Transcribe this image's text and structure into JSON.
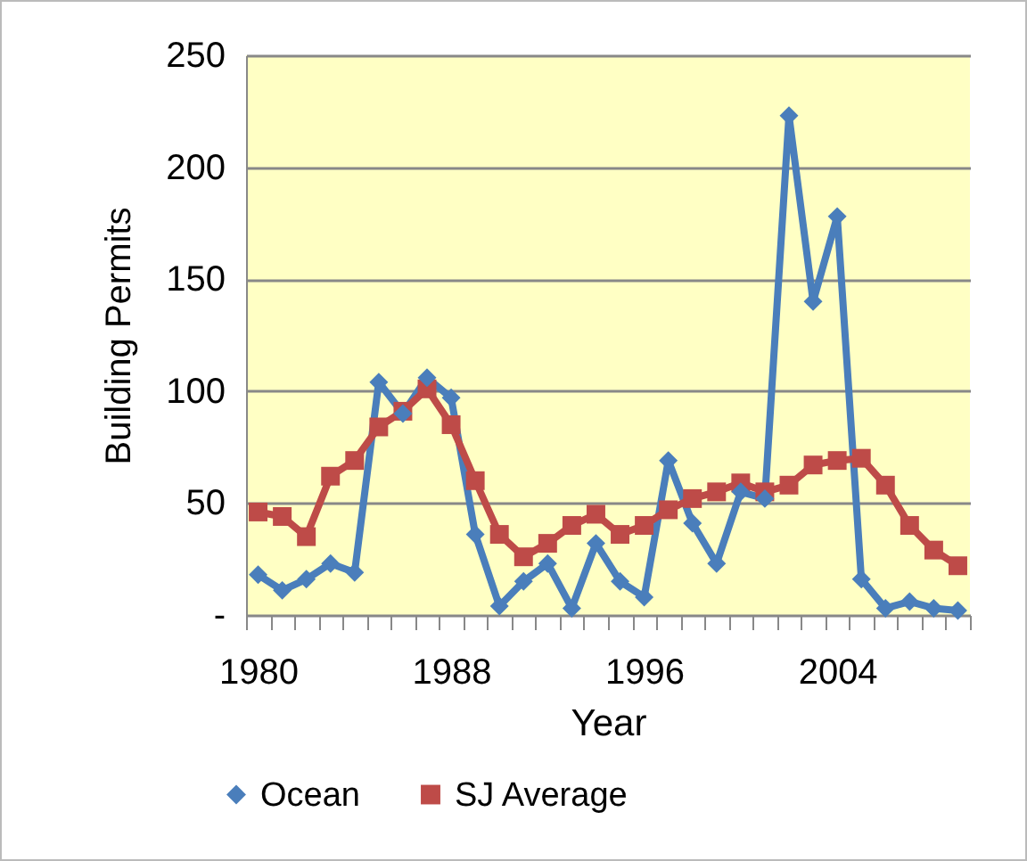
{
  "chart_data": {
    "type": "line",
    "xlabel": "Year",
    "ylabel": "Building Permits",
    "categories": [
      "1980",
      null,
      null,
      null,
      null,
      null,
      null,
      null,
      "1988",
      null,
      null,
      null,
      null,
      null,
      null,
      null,
      "1996",
      null,
      null,
      null,
      null,
      null,
      null,
      null,
      "2004",
      null,
      null,
      null,
      null,
      null
    ],
    "series": [
      {
        "name": "Ocean",
        "color": "#4a7ebb",
        "marker": "diamond",
        "values": [
          18,
          11,
          16,
          23,
          19,
          104,
          90,
          106,
          97,
          36,
          4,
          15,
          23,
          3,
          32,
          15,
          8,
          69,
          41,
          23,
          55,
          52,
          223,
          140,
          178,
          16,
          3,
          6,
          3,
          2
        ]
      },
      {
        "name": "SJ Average",
        "color": "#be4b48",
        "marker": "square",
        "values": [
          46,
          44,
          35,
          62,
          69,
          84,
          91,
          101,
          85,
          60,
          36,
          26,
          32,
          40,
          45,
          36,
          40,
          47,
          52,
          55,
          59,
          55,
          58,
          67,
          69,
          70,
          58,
          40,
          29,
          22
        ]
      }
    ],
    "ylim": [
      0,
      250
    ],
    "yticks": [
      {
        "value": 0,
        "label": "-"
      },
      50,
      100,
      150,
      200,
      250
    ],
    "grid": "y",
    "legend": "bottom",
    "line_style": "solid"
  }
}
